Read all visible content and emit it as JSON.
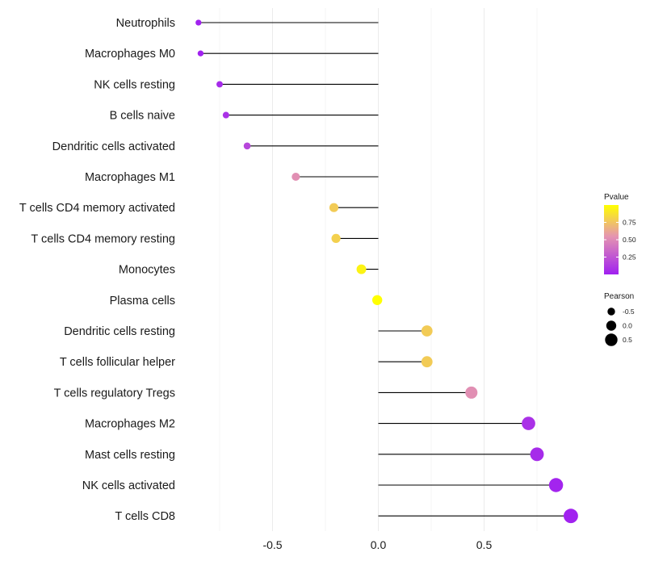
{
  "chart_data": {
    "type": "lollipop",
    "title": "",
    "xlabel": "",
    "ylabel": "",
    "xlim": [
      -0.93,
      0.95
    ],
    "x_ticks": [
      -0.5,
      0.0,
      0.5
    ],
    "x_tick_labels": [
      "-0.5",
      "0.0",
      "0.5"
    ],
    "grid": true,
    "categories": [
      "Neutrophils",
      "Macrophages M0",
      "NK cells resting",
      "B cells naive",
      "Dendritic cells activated",
      "Macrophages M1",
      "T cells CD4 memory activated",
      "T cells CD4 memory resting",
      "Monocytes",
      "Plasma cells",
      "Dendritic cells resting",
      "T cells follicular helper",
      "T cells regulatory  Tregs ",
      "Macrophages M2",
      "Mast cells resting",
      "NK cells activated",
      "T cells CD8"
    ],
    "pearson": [
      -0.85,
      -0.84,
      -0.75,
      -0.72,
      -0.62,
      -0.39,
      -0.21,
      -0.2,
      -0.08,
      -0.005,
      0.23,
      0.23,
      0.44,
      0.71,
      0.75,
      0.84,
      0.91
    ],
    "pvalue": [
      0.01,
      0.01,
      0.05,
      0.08,
      0.18,
      0.52,
      0.78,
      0.8,
      0.95,
      1.0,
      0.78,
      0.78,
      0.52,
      0.08,
      0.05,
      0.02,
      0.01
    ],
    "legend": {
      "color_title": "Pvalue",
      "color_ticks": [
        0.25,
        0.5,
        0.75
      ],
      "color_tick_labels": [
        "0.25",
        "0.50",
        "0.75"
      ],
      "color_low": "#a020f0",
      "color_high": "#ffff00",
      "size_title": "Pearson",
      "size_values": [
        -0.5,
        0.0,
        0.5
      ],
      "size_labels": [
        "-0.5",
        "0.0",
        "0.5"
      ],
      "placement": "right"
    },
    "colors": {
      "segment": "#000000",
      "grid": "#ebebeb",
      "text": "#1a1a1a"
    }
  }
}
